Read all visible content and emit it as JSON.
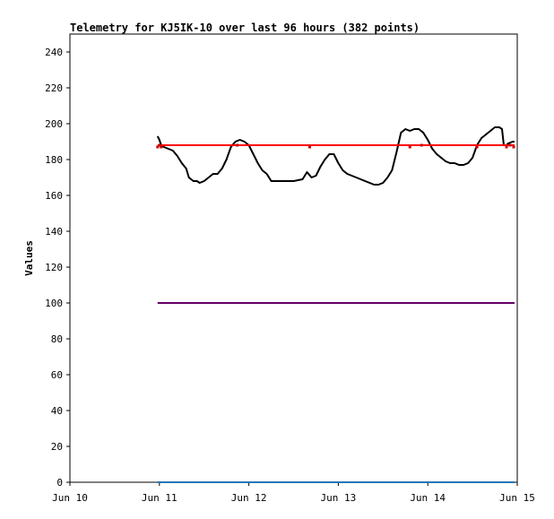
{
  "chart_data": {
    "type": "line",
    "title": "Telemetry for KJ5IK-10 over last 96 hours (382 points)",
    "xlabel": "",
    "ylabel": "Values",
    "xlim": [
      "Jun 10",
      "Jun 15"
    ],
    "ylim": [
      0,
      250
    ],
    "x_ticks": [
      "Jun 10",
      "Jun 11",
      "Jun 12",
      "Jun 13",
      "Jun 14",
      "Jun 15"
    ],
    "y_ticks": [
      0,
      20,
      40,
      60,
      80,
      100,
      120,
      140,
      160,
      180,
      200,
      220,
      240
    ],
    "grid": false,
    "legend": "none",
    "series": [
      {
        "color": "#000000",
        "style": "line",
        "points": [
          [
            10.98,
            193
          ],
          [
            11.0,
            191
          ],
          [
            11.02,
            188
          ],
          [
            11.05,
            187
          ],
          [
            11.1,
            186
          ],
          [
            11.15,
            185
          ],
          [
            11.2,
            182
          ],
          [
            11.25,
            178
          ],
          [
            11.3,
            175
          ],
          [
            11.33,
            170
          ],
          [
            11.38,
            168
          ],
          [
            11.42,
            168
          ],
          [
            11.45,
            167
          ],
          [
            11.5,
            168
          ],
          [
            11.55,
            170
          ],
          [
            11.6,
            172
          ],
          [
            11.65,
            172
          ],
          [
            11.7,
            175
          ],
          [
            11.75,
            180
          ],
          [
            11.8,
            187
          ],
          [
            11.85,
            190
          ],
          [
            11.9,
            191
          ],
          [
            11.95,
            190
          ],
          [
            12.0,
            188
          ],
          [
            12.05,
            183
          ],
          [
            12.1,
            178
          ],
          [
            12.15,
            174
          ],
          [
            12.2,
            172
          ],
          [
            12.25,
            168
          ],
          [
            12.3,
            168
          ],
          [
            12.4,
            168
          ],
          [
            12.5,
            168
          ],
          [
            12.6,
            169
          ],
          [
            12.65,
            173
          ],
          [
            12.7,
            170
          ],
          [
            12.75,
            171
          ],
          [
            12.8,
            176
          ],
          [
            12.85,
            180
          ],
          [
            12.9,
            183
          ],
          [
            12.95,
            183
          ],
          [
            13.0,
            178
          ],
          [
            13.05,
            174
          ],
          [
            13.1,
            172
          ],
          [
            13.2,
            170
          ],
          [
            13.3,
            168
          ],
          [
            13.4,
            166
          ],
          [
            13.45,
            166
          ],
          [
            13.5,
            167
          ],
          [
            13.55,
            170
          ],
          [
            13.6,
            174
          ],
          [
            13.65,
            184
          ],
          [
            13.7,
            195
          ],
          [
            13.75,
            197
          ],
          [
            13.8,
            196
          ],
          [
            13.85,
            197
          ],
          [
            13.9,
            197
          ],
          [
            13.95,
            195
          ],
          [
            14.0,
            191
          ],
          [
            14.05,
            186
          ],
          [
            14.1,
            183
          ],
          [
            14.15,
            181
          ],
          [
            14.2,
            179
          ],
          [
            14.25,
            178
          ],
          [
            14.3,
            178
          ],
          [
            14.35,
            177
          ],
          [
            14.4,
            177
          ],
          [
            14.45,
            178
          ],
          [
            14.5,
            181
          ],
          [
            14.55,
            188
          ],
          [
            14.6,
            192
          ],
          [
            14.65,
            194
          ],
          [
            14.7,
            196
          ],
          [
            14.75,
            198
          ],
          [
            14.8,
            198
          ],
          [
            14.83,
            197
          ],
          [
            14.85,
            188
          ],
          [
            14.88,
            188
          ],
          [
            14.9,
            189
          ],
          [
            14.95,
            190
          ],
          [
            14.97,
            190
          ]
        ]
      },
      {
        "color": "#ff0000",
        "style": "line",
        "points": [
          [
            10.98,
            188
          ],
          [
            14.97,
            188
          ]
        ]
      },
      {
        "color": "#cc0000",
        "style": "markers",
        "points": [
          [
            10.98,
            187
          ],
          [
            11.0,
            188
          ],
          [
            11.02,
            187
          ],
          [
            11.87,
            188
          ],
          [
            12.68,
            187
          ],
          [
            13.8,
            187
          ],
          [
            13.93,
            188
          ],
          [
            14.55,
            187
          ],
          [
            14.88,
            187
          ],
          [
            14.92,
            188
          ],
          [
            14.96,
            187
          ]
        ]
      },
      {
        "color": "#660066",
        "style": "line",
        "points": [
          [
            10.98,
            100
          ],
          [
            14.97,
            100
          ]
        ]
      },
      {
        "color": "#1f77b4",
        "style": "line",
        "points": [
          [
            10.98,
            0
          ],
          [
            14.97,
            0
          ]
        ]
      }
    ]
  }
}
